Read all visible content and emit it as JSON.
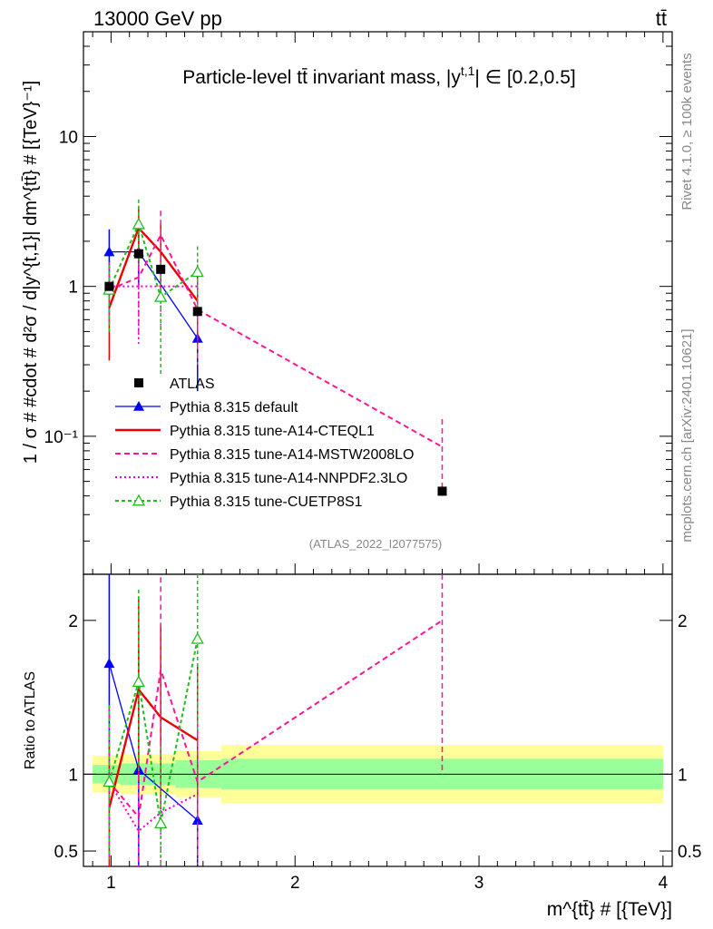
{
  "header": {
    "left": "13000 GeV pp",
    "right": "tt̄"
  },
  "side_labels": {
    "rivet": "Rivet 4.1.0, ≥ 100k events",
    "mcplots": "mcplots.cern.ch [arXiv:2401.10621]"
  },
  "chart_data": {
    "type": "line",
    "title": "Particle-level tt̄ invariant mass, |y^{t,1}| ∈ [0.2,0.5]",
    "title_main": "Particle-level tt̄ invariant mass, |y",
    "title_sup": "t,1",
    "title_tail": "| ∈ [0.2,0.5]",
    "ylabel": "1 / σ # #cdot # d²σ / d|y^{t,1}| dm^{tt̄} # [{TeV}⁻¹]",
    "ylabel_text": "1 / σ # #cdot # d²σ / d|y^{t,1}| dm^{tt̄} # [{TeV}⁻¹]",
    "ratio_ylabel": "Ratio to ATLAS",
    "xlabel": "m^{tt̄} # [{TeV}]",
    "xlabel_text": "m^{tt̄} # [{TeV}]",
    "watermark": "(ATLAS_2022_I2077575)",
    "xlim": [
      0.85,
      4.05
    ],
    "ylim": [
      0.012,
      50
    ],
    "ylog": true,
    "ratio_ylim": [
      0.4,
      2.3
    ],
    "x_ticks": [
      {
        "v": 1,
        "label": "1"
      },
      {
        "v": 2,
        "label": "2"
      },
      {
        "v": 3,
        "label": "3"
      },
      {
        "v": 4,
        "label": "4"
      }
    ],
    "y_ticks": [
      {
        "v": 10,
        "label": "10"
      },
      {
        "v": 1,
        "label": "1"
      },
      {
        "v": 0.1,
        "label": "10⁻¹"
      }
    ],
    "ratio_ticks": [
      {
        "v": 2,
        "label": "2"
      },
      {
        "v": 1,
        "label": "1"
      },
      {
        "v": 0.5,
        "label": "0.5"
      }
    ],
    "bins": [
      {
        "lo": 0.9,
        "hi": 1.05
      },
      {
        "lo": 1.05,
        "hi": 1.2
      },
      {
        "lo": 1.2,
        "hi": 1.35
      },
      {
        "lo": 1.35,
        "hi": 1.6
      },
      {
        "lo": 1.6,
        "hi": 4.0
      }
    ],
    "data": {
      "name": "ATLAS",
      "x": [
        0.99,
        1.15,
        1.27,
        1.47,
        2.8
      ],
      "y": [
        1.0,
        1.65,
        1.3,
        0.68,
        0.043
      ],
      "band_stat": [
        0.06,
        0.07,
        0.07,
        0.09,
        0.1
      ],
      "band_tot": [
        0.12,
        0.13,
        0.13,
        0.15,
        0.19
      ]
    },
    "series": [
      {
        "name": "Pythia 8.315 default",
        "color": "#0000ff",
        "dash": "",
        "marker": "tri-filled",
        "x": [
          0.99,
          1.15,
          1.47
        ],
        "y": [
          1.7,
          1.7,
          0.45
        ],
        "err": [
          0.7,
          0.7,
          0.25
        ],
        "ratio": [
          1.72,
          1.03,
          0.7
        ],
        "ratio_err": [
          0.6,
          0.8,
          0.3
        ]
      },
      {
        "name": "Pythia 8.315 tune-A14-CTEQL1",
        "color": "#ee0000",
        "dash": "",
        "marker": "none",
        "x": [
          0.99,
          1.15,
          1.27,
          1.47
        ],
        "y": [
          0.72,
          2.45,
          1.7,
          0.8
        ],
        "err": [
          0.4,
          1.0,
          0.9,
          0.4
        ],
        "ratio": [
          0.78,
          1.55,
          1.37,
          1.22
        ],
        "ratio_err": [
          0.4,
          0.6,
          0.6,
          0.5
        ]
      },
      {
        "name": "Pythia 8.315 tune-A14-MSTW2008LO",
        "color": "#ff1493",
        "dash": "6,4",
        "marker": "none",
        "x": [
          0.99,
          1.15,
          1.27,
          1.47,
          2.8
        ],
        "y": [
          0.95,
          1.15,
          2.2,
          0.7,
          0.085
        ],
        "err": [
          0.45,
          0.7,
          1.0,
          0.4,
          0.045
        ],
        "ratio": [
          0.95,
          0.72,
          1.68,
          0.95,
          2.0
        ],
        "ratio_err": [
          0.5,
          0.4,
          0.6,
          0.5,
          1.0
        ]
      },
      {
        "name": "Pythia 8.315 tune-A14-NNPDF2.3LO",
        "color": "#ee00cc",
        "dash": "2,3",
        "marker": "none",
        "x": [
          0.99,
          1.15,
          1.27,
          1.47
        ],
        "y": [
          1.0,
          1.0,
          1.0,
          1.0
        ],
        "err": [
          0.45,
          0.6,
          0.5,
          0.5
        ],
        "ratio": [
          0.95,
          0.63,
          0.75,
          0.87
        ],
        "ratio_err": [
          0.5,
          0.4,
          0.4,
          0.5
        ]
      },
      {
        "name": "Pythia 8.315 tune-CUETP8S1",
        "color": "#22bb22",
        "dash": "4,3",
        "marker": "tri-open",
        "x": [
          0.99,
          1.15,
          1.27,
          1.47
        ],
        "y": [
          0.95,
          2.6,
          0.85,
          1.25
        ],
        "err": [
          0.45,
          1.2,
          0.6,
          0.6
        ],
        "ratio": [
          0.95,
          1.6,
          0.68,
          1.88
        ],
        "ratio_err": [
          0.5,
          0.6,
          0.5,
          0.6
        ]
      }
    ]
  }
}
